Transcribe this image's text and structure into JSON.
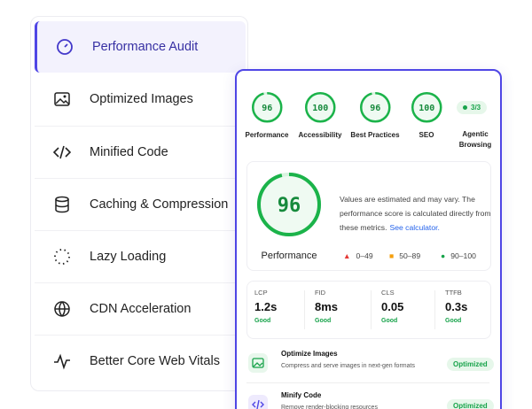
{
  "sidebar": {
    "items": [
      "Performance Audit",
      "Optimized Images",
      "Minified Code",
      "Caching & Compression",
      "Lazy Loading",
      "CDN Acceleration",
      "Better Core Web Vitals"
    ]
  },
  "card": {
    "scores": [
      {
        "value": 96,
        "label": "Performance"
      },
      {
        "value": 100,
        "label": "Accessibility"
      },
      {
        "value": 96,
        "label": "Best Practices"
      },
      {
        "value": 100,
        "label": "SEO"
      }
    ],
    "agentic": {
      "badge": "3/3",
      "label": "Agentic Browsing"
    },
    "summary": {
      "score": 96,
      "label": "Performance",
      "text": "Values are estimated and may vary. The performance score is calculated directly from these metrics.",
      "link": "See calculator.",
      "legend": [
        "0–49",
        "50–89",
        "90–100"
      ]
    },
    "metrics": [
      {
        "name": "LCP",
        "value": "1.2s",
        "status": "Good"
      },
      {
        "name": "FID",
        "value": "8ms",
        "status": "Good"
      },
      {
        "name": "CLS",
        "value": "0.05",
        "status": "Good"
      },
      {
        "name": "TTFB",
        "value": "0.3s",
        "status": "Good"
      }
    ],
    "audits": [
      {
        "title": "Optimize Images",
        "description": "Compress and serve images in next-gen formats",
        "status": "Optimized"
      },
      {
        "title": "Minify Code",
        "description": "Remove render-blocking resources",
        "status": "Optimized"
      }
    ]
  }
}
